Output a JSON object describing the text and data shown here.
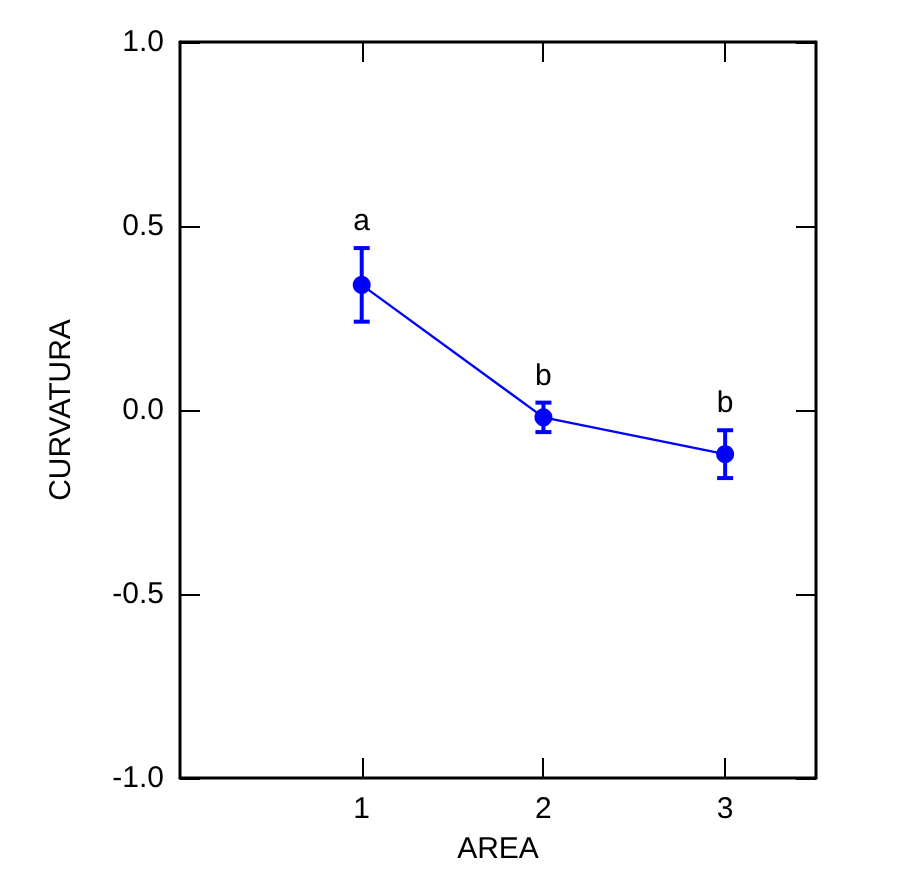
{
  "chart_data": {
    "type": "line",
    "xlabel": "AREA",
    "ylabel": "CURVATURA",
    "x": [
      1,
      2,
      3
    ],
    "series": [
      {
        "color": "#0000ff",
        "values": [
          0.34,
          -0.02,
          -0.12
        ],
        "errors": [
          0.1,
          0.04,
          0.065
        ]
      }
    ],
    "xlim": [
      0,
      3.5
    ],
    "xticks": [
      1,
      2,
      3
    ],
    "ylim": [
      -1.0,
      1.0
    ],
    "yticks": [
      {
        "value": -1.0,
        "label": "-1.0"
      },
      {
        "value": -0.5,
        "label": "-0.5"
      },
      {
        "value": 0,
        "label": "0.0"
      },
      {
        "value": 0.5,
        "label": "0.5"
      },
      {
        "value": 1.0,
        "label": "1.0"
      }
    ],
    "annotations": [
      {
        "text": "a",
        "x": 1,
        "y": 0.44
      },
      {
        "text": "b",
        "x": 2,
        "y": 0.02
      },
      {
        "text": "b",
        "x": 3,
        "y": -0.055
      }
    ],
    "marker": "circle",
    "line_style": "solid",
    "grid": false
  }
}
